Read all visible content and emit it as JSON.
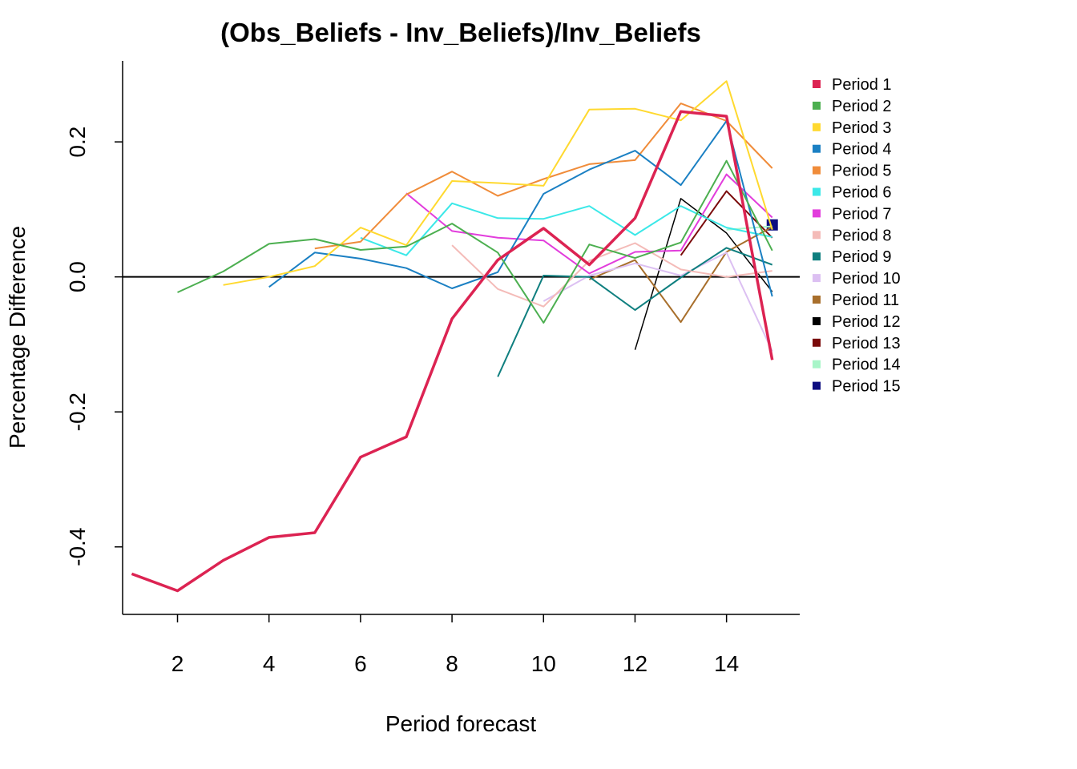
{
  "chart_data": {
    "type": "line",
    "title": "(Obs_Beliefs - Inv_Beliefs)/Inv_Beliefs",
    "xlabel": "Period forecast",
    "ylabel": "Percentage Difference",
    "xlim": [
      0.8,
      15.6
    ],
    "ylim": [
      -0.5,
      0.32
    ],
    "x_ticks": [
      2,
      4,
      6,
      8,
      10,
      12,
      14
    ],
    "y_ticks": [
      -0.4,
      -0.2,
      0.0,
      0.2
    ],
    "x_tick_labels": [
      "2",
      "4",
      "6",
      "8",
      "10",
      "12",
      "14"
    ],
    "y_tick_labels": [
      "-0.4",
      "-0.2",
      "0.0",
      "0.2"
    ],
    "reference_line_y": 0,
    "legend_position": "top-right",
    "grid": false,
    "series": [
      {
        "name": "Period 1",
        "color": "#DC2352",
        "width": 3.5,
        "x": [
          1,
          2,
          3,
          4,
          5,
          6,
          7,
          8,
          9,
          10,
          11,
          12,
          13,
          14,
          15
        ],
        "y": [
          -0.44,
          -0.465,
          -0.42,
          -0.386,
          -0.379,
          -0.267,
          -0.237,
          -0.062,
          0.025,
          0.072,
          0.018,
          0.087,
          0.245,
          0.238,
          -0.123
        ]
      },
      {
        "name": "Period 2",
        "color": "#4CAF50",
        "width": 2,
        "x": [
          2,
          3,
          4,
          5,
          6,
          7,
          8,
          9,
          10,
          11,
          12,
          13,
          14,
          15
        ],
        "y": [
          -0.023,
          0.008,
          0.049,
          0.056,
          0.04,
          0.045,
          0.079,
          0.036,
          -0.068,
          0.048,
          0.028,
          0.051,
          0.172,
          0.039
        ]
      },
      {
        "name": "Period 3",
        "color": "#FFD92F",
        "width": 2,
        "x": [
          3,
          4,
          5,
          6,
          7,
          8,
          9,
          10,
          11,
          12,
          13,
          14,
          15
        ],
        "y": [
          -0.012,
          0.0,
          0.016,
          0.073,
          0.047,
          0.142,
          0.139,
          0.135,
          0.248,
          0.249,
          0.232,
          0.29,
          0.07
        ]
      },
      {
        "name": "Period 4",
        "color": "#1B80C3",
        "width": 2,
        "x": [
          4,
          5,
          6,
          7,
          8,
          9,
          10,
          11,
          12,
          13,
          14,
          15
        ],
        "y": [
          -0.015,
          0.036,
          0.027,
          0.013,
          -0.017,
          0.007,
          0.123,
          0.159,
          0.187,
          0.136,
          0.231,
          -0.029
        ]
      },
      {
        "name": "Period 5",
        "color": "#F08C3A",
        "width": 2,
        "x": [
          5,
          6,
          7,
          8,
          9,
          10,
          11,
          12,
          13,
          14,
          15
        ],
        "y": [
          0.042,
          0.052,
          0.122,
          0.156,
          0.12,
          0.145,
          0.167,
          0.173,
          0.257,
          0.231,
          0.161
        ]
      },
      {
        "name": "Period 6",
        "color": "#3BE8E8",
        "width": 2,
        "x": [
          6,
          7,
          8,
          9,
          10,
          11,
          12,
          13,
          14,
          15
        ],
        "y": [
          0.058,
          0.032,
          0.109,
          0.087,
          0.086,
          0.105,
          0.062,
          0.105,
          0.073,
          0.059
        ]
      },
      {
        "name": "Period 7",
        "color": "#E23DDC",
        "width": 2,
        "x": [
          7,
          8,
          9,
          10,
          11,
          12,
          13,
          14,
          15
        ],
        "y": [
          0.124,
          0.068,
          0.058,
          0.054,
          0.005,
          0.037,
          0.039,
          0.152,
          0.088
        ]
      },
      {
        "name": "Period 8",
        "color": "#F4BBB8",
        "width": 2,
        "x": [
          8,
          9,
          10,
          11,
          12,
          13,
          14,
          15
        ],
        "y": [
          0.047,
          -0.018,
          -0.044,
          0.024,
          0.05,
          0.011,
          0.0,
          0.009
        ]
      },
      {
        "name": "Period 9",
        "color": "#0F7F7F",
        "width": 2,
        "x": [
          9,
          10,
          11,
          12,
          13,
          14,
          15
        ],
        "y": [
          -0.148,
          0.002,
          0.0,
          -0.049,
          -0.001,
          0.043,
          0.018
        ]
      },
      {
        "name": "Period 10",
        "color": "#DCC0F2",
        "width": 2,
        "x": [
          10,
          11,
          12,
          13,
          14,
          15
        ],
        "y": [
          -0.036,
          0.002,
          0.02,
          0.002,
          0.036,
          -0.11
        ]
      },
      {
        "name": "Period 11",
        "color": "#A86F2C",
        "width": 2,
        "x": [
          11,
          12,
          13,
          14,
          15
        ],
        "y": [
          -0.004,
          0.025,
          -0.067,
          0.037,
          0.074
        ]
      },
      {
        "name": "Period 12",
        "color": "#000000",
        "width": 1.5,
        "x": [
          12,
          13,
          14,
          15
        ],
        "y": [
          -0.108,
          0.116,
          0.065,
          -0.022
        ]
      },
      {
        "name": "Period 13",
        "color": "#7A0A0A",
        "width": 2,
        "x": [
          13,
          14,
          15
        ],
        "y": [
          0.032,
          0.127,
          0.058
        ]
      },
      {
        "name": "Period 14",
        "color": "#A8F5C8",
        "width": 2,
        "x": [
          14,
          15
        ],
        "y": [
          0.07,
          0.075
        ]
      },
      {
        "name": "Period 15",
        "color": "#0D0D80",
        "width": 2,
        "x": [
          15
        ],
        "y": [
          0.077
        ]
      }
    ]
  }
}
